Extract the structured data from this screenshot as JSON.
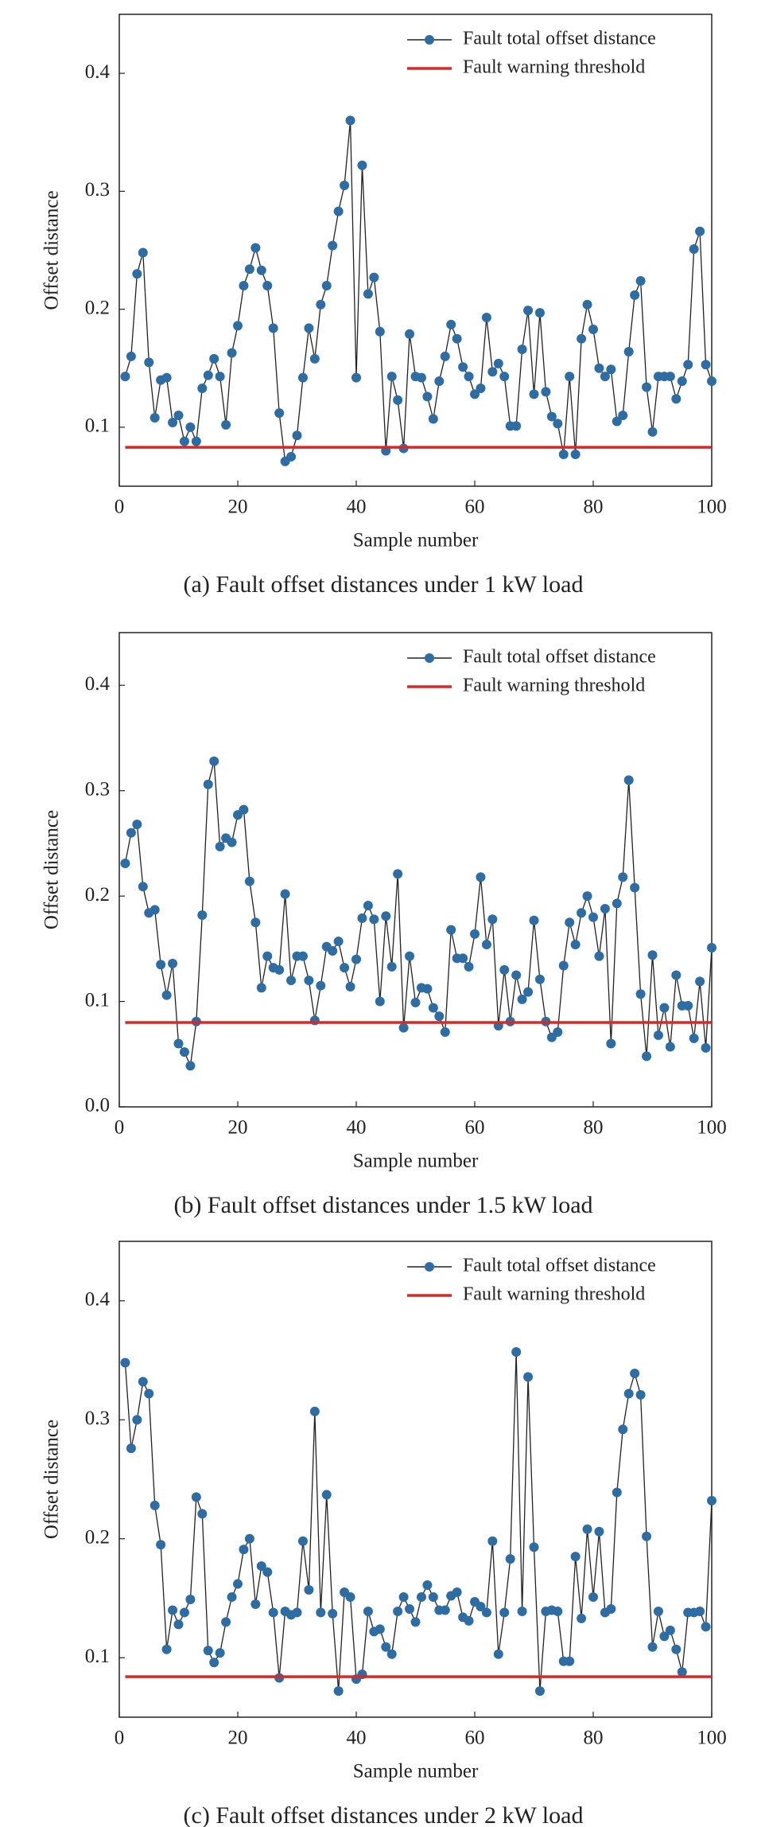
{
  "chart_data": [
    {
      "type": "line",
      "caption": "(a) Fault offset distances under 1 kW load",
      "xlabel": "Sample number",
      "ylabel": "Offset distance",
      "xlim": [
        0,
        100
      ],
      "ylim": [
        0.05,
        0.45
      ],
      "xticks": [
        0,
        20,
        40,
        60,
        80,
        100
      ],
      "yticks": [
        0.1,
        0.2,
        0.3,
        0.4
      ],
      "legend": "upper right",
      "x": [
        1,
        2,
        3,
        4,
        5,
        6,
        7,
        8,
        9,
        10,
        11,
        12,
        13,
        14,
        15,
        16,
        17,
        18,
        19,
        20,
        21,
        22,
        23,
        24,
        25,
        26,
        27,
        28,
        29,
        30,
        31,
        32,
        33,
        34,
        35,
        36,
        37,
        38,
        39,
        40,
        41,
        42,
        43,
        44,
        45,
        46,
        47,
        48,
        49,
        50,
        51,
        52,
        53,
        54,
        55,
        56,
        57,
        58,
        59,
        60,
        61,
        62,
        63,
        64,
        65,
        66,
        67,
        68,
        69,
        70,
        71,
        72,
        73,
        74,
        75,
        76,
        77,
        78,
        79,
        80,
        81,
        82,
        83,
        84,
        85,
        86,
        87,
        88,
        89,
        90,
        91,
        92,
        93,
        94,
        95,
        96,
        97,
        98,
        99,
        100
      ],
      "series": [
        {
          "name": "Fault total offset distance",
          "color": "#2e6da4",
          "values": [
            0.143,
            0.16,
            0.23,
            0.248,
            0.155,
            0.108,
            0.14,
            0.142,
            0.104,
            0.11,
            0.088,
            0.1,
            0.088,
            0.133,
            0.144,
            0.158,
            0.143,
            0.102,
            0.163,
            0.186,
            0.22,
            0.234,
            0.252,
            0.233,
            0.22,
            0.184,
            0.112,
            0.071,
            0.075,
            0.093,
            0.142,
            0.184,
            0.158,
            0.204,
            0.22,
            0.254,
            0.283,
            0.305,
            0.36,
            0.142,
            0.322,
            0.213,
            0.227,
            0.181,
            0.08,
            0.143,
            0.123,
            0.082,
            0.179,
            0.143,
            0.142,
            0.126,
            0.107,
            0.139,
            0.16,
            0.187,
            0.175,
            0.151,
            0.143,
            0.128,
            0.133,
            0.193,
            0.147,
            0.154,
            0.143,
            0.101,
            0.101,
            0.166,
            0.199,
            0.128,
            0.197,
            0.13,
            0.109,
            0.103,
            0.077,
            0.143,
            0.077,
            0.175,
            0.204,
            0.183,
            0.15,
            0.143,
            0.149,
            0.105,
            0.11,
            0.164,
            0.212,
            0.224,
            0.134,
            0.096,
            0.143,
            0.143,
            0.143,
            0.124,
            0.139,
            0.153,
            0.251,
            0.266,
            0.153,
            0.139
          ]
        },
        {
          "name": "Fault warning threshold",
          "color": "#d62a28",
          "x": [
            1,
            100
          ],
          "values": [
            0.083,
            0.083
          ]
        }
      ]
    },
    {
      "type": "line",
      "caption": "(b) Fault offset distances under 1.5 kW load",
      "xlabel": "Sample number",
      "ylabel": "Offset distance",
      "xlim": [
        0,
        100
      ],
      "ylim": [
        0,
        0.45
      ],
      "xticks": [
        0,
        20,
        40,
        60,
        80,
        100
      ],
      "yticks": [
        {
          "value": 0,
          "label": "0.0"
        },
        0.1,
        0.2,
        0.3,
        0.4
      ],
      "legend": "upper right",
      "x": [
        1,
        2,
        3,
        4,
        5,
        6,
        7,
        8,
        9,
        10,
        11,
        12,
        13,
        14,
        15,
        16,
        17,
        18,
        19,
        20,
        21,
        22,
        23,
        24,
        25,
        26,
        27,
        28,
        29,
        30,
        31,
        32,
        33,
        34,
        35,
        36,
        37,
        38,
        39,
        40,
        41,
        42,
        43,
        44,
        45,
        46,
        47,
        48,
        49,
        50,
        51,
        52,
        53,
        54,
        55,
        56,
        57,
        58,
        59,
        60,
        61,
        62,
        63,
        64,
        65,
        66,
        67,
        68,
        69,
        70,
        71,
        72,
        73,
        74,
        75,
        76,
        77,
        78,
        79,
        80,
        81,
        82,
        83,
        84,
        85,
        86,
        87,
        88,
        89,
        90,
        91,
        92,
        93,
        94,
        95,
        96,
        97,
        98,
        99,
        100
      ],
      "series": [
        {
          "name": "Fault total offset distance",
          "color": "#2e6da4",
          "values": [
            0.231,
            0.26,
            0.268,
            0.209,
            0.184,
            0.187,
            0.135,
            0.106,
            0.136,
            0.06,
            0.052,
            0.039,
            0.081,
            0.182,
            0.306,
            0.328,
            0.247,
            0.255,
            0.251,
            0.277,
            0.282,
            0.214,
            0.175,
            0.113,
            0.143,
            0.132,
            0.13,
            0.202,
            0.12,
            0.143,
            0.143,
            0.12,
            0.082,
            0.115,
            0.152,
            0.148,
            0.157,
            0.132,
            0.114,
            0.14,
            0.179,
            0.191,
            0.178,
            0.1,
            0.181,
            0.133,
            0.221,
            0.075,
            0.143,
            0.099,
            0.113,
            0.112,
            0.094,
            0.086,
            0.071,
            0.168,
            0.141,
            0.141,
            0.133,
            0.164,
            0.218,
            0.154,
            0.178,
            0.077,
            0.13,
            0.081,
            0.125,
            0.102,
            0.109,
            0.177,
            0.121,
            0.081,
            0.066,
            0.071,
            0.134,
            0.175,
            0.154,
            0.184,
            0.2,
            0.18,
            0.143,
            0.188,
            0.06,
            0.193,
            0.218,
            0.31,
            0.208,
            0.107,
            0.048,
            0.144,
            0.068,
            0.094,
            0.057,
            0.125,
            0.096,
            0.096,
            0.065,
            0.119,
            0.056,
            0.151
          ]
        },
        {
          "name": "Fault warning threshold",
          "color": "#d62a28",
          "x": [
            1,
            100
          ],
          "values": [
            0.08,
            0.08
          ]
        }
      ]
    },
    {
      "type": "line",
      "caption": "(c) Fault offset distances under 2 kW load",
      "xlabel": "Sample number",
      "ylabel": "Offset distance",
      "xlim": [
        0,
        100
      ],
      "ylim": [
        0.05,
        0.45
      ],
      "xticks": [
        0,
        20,
        40,
        60,
        80,
        100
      ],
      "yticks": [
        0.1,
        0.2,
        0.3,
        0.4
      ],
      "legend": "upper right",
      "x": [
        1,
        2,
        3,
        4,
        5,
        6,
        7,
        8,
        9,
        10,
        11,
        12,
        13,
        14,
        15,
        16,
        17,
        18,
        19,
        20,
        21,
        22,
        23,
        24,
        25,
        26,
        27,
        28,
        29,
        30,
        31,
        32,
        33,
        34,
        35,
        36,
        37,
        38,
        39,
        40,
        41,
        42,
        43,
        44,
        45,
        46,
        47,
        48,
        49,
        50,
        51,
        52,
        53,
        54,
        55,
        56,
        57,
        58,
        59,
        60,
        61,
        62,
        63,
        64,
        65,
        66,
        67,
        68,
        69,
        70,
        71,
        72,
        73,
        74,
        75,
        76,
        77,
        78,
        79,
        80,
        81,
        82,
        83,
        84,
        85,
        86,
        87,
        88,
        89,
        90,
        91,
        92,
        93,
        94,
        95,
        96,
        97,
        98,
        99,
        100
      ],
      "series": [
        {
          "name": "Fault total offset distance",
          "color": "#2e6da4",
          "values": [
            0.348,
            0.276,
            0.3,
            0.332,
            0.322,
            0.228,
            0.195,
            0.107,
            0.14,
            0.128,
            0.138,
            0.149,
            0.235,
            0.221,
            0.106,
            0.096,
            0.104,
            0.13,
            0.151,
            0.162,
            0.191,
            0.2,
            0.145,
            0.177,
            0.172,
            0.138,
            0.083,
            0.139,
            0.136,
            0.138,
            0.198,
            0.157,
            0.307,
            0.138,
            0.237,
            0.137,
            0.072,
            0.155,
            0.151,
            0.082,
            0.086,
            0.139,
            0.122,
            0.124,
            0.109,
            0.103,
            0.139,
            0.151,
            0.141,
            0.13,
            0.151,
            0.161,
            0.151,
            0.14,
            0.14,
            0.152,
            0.155,
            0.134,
            0.131,
            0.147,
            0.143,
            0.138,
            0.198,
            0.103,
            0.138,
            0.183,
            0.357,
            0.139,
            0.336,
            0.193,
            0.072,
            0.139,
            0.14,
            0.139,
            0.097,
            0.097,
            0.185,
            0.133,
            0.208,
            0.151,
            0.206,
            0.138,
            0.141,
            0.239,
            0.292,
            0.322,
            0.339,
            0.321,
            0.202,
            0.109,
            0.139,
            0.118,
            0.123,
            0.107,
            0.088,
            0.138,
            0.138,
            0.139,
            0.126,
            0.232
          ]
        },
        {
          "name": "Fault warning threshold",
          "color": "#d62a28",
          "x": [
            1,
            100
          ],
          "values": [
            0.084,
            0.084
          ]
        }
      ]
    }
  ]
}
